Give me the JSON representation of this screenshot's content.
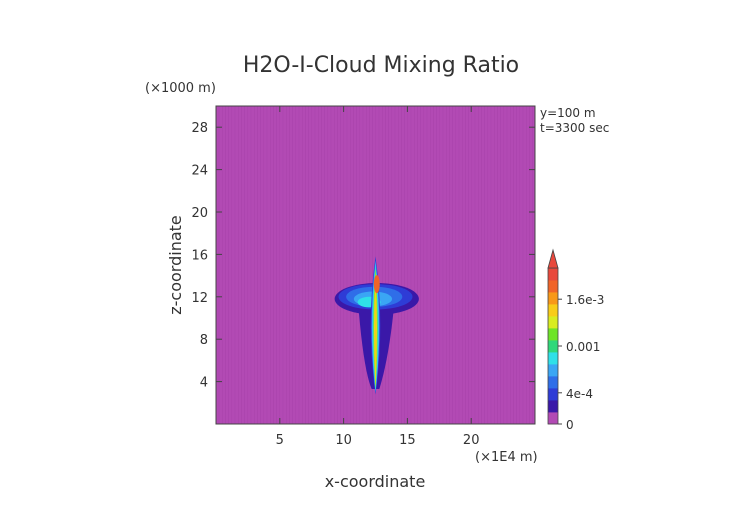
{
  "chart_data": {
    "type": "heatmap",
    "title": "H2O-I-Cloud Mixing Ratio",
    "xlabel": "x-coordinate",
    "ylabel": "z-coordinate",
    "x_unit": "(×1E4 m)",
    "y_unit": "(×1000 m)",
    "annotations": [
      "y=100 m",
      "t=3300 sec"
    ],
    "xlim": [
      0,
      25
    ],
    "ylim": [
      0,
      30
    ],
    "x_ticks": [
      5,
      10,
      15,
      20
    ],
    "x_tick_labels": [
      "5",
      "10",
      "15",
      "20"
    ],
    "y_ticks": [
      4,
      8,
      12,
      16,
      20,
      24,
      28
    ],
    "y_tick_labels": [
      "4",
      "8",
      "12",
      "16",
      "20",
      "24",
      "28"
    ],
    "colorbar": {
      "min": 0,
      "max": 0.002,
      "tick_values": [
        0,
        0.0004,
        0.001,
        0.0016
      ],
      "tick_labels": [
        "0",
        "4e-4",
        "0.001",
        "1.6e-3"
      ],
      "colors": [
        "#b24ab4",
        "#3a18a8",
        "#2e3cd6",
        "#2f6ee8",
        "#3aa6f4",
        "#2fe0e8",
        "#2fd87a",
        "#6ee428",
        "#d8ec20",
        "#f8cc18",
        "#f89818",
        "#f06428",
        "#e8483c"
      ],
      "extend": "max"
    },
    "background_value": 0,
    "cloud_features": [
      {
        "name": "core column",
        "x": 12.5,
        "z_bottom": 2.8,
        "z_top": 15.8,
        "peak": 0.0019
      },
      {
        "name": "anvil",
        "x_range": [
          9.3,
          15.8
        ],
        "z_center": 11.6,
        "level": 0.0004
      }
    ]
  }
}
